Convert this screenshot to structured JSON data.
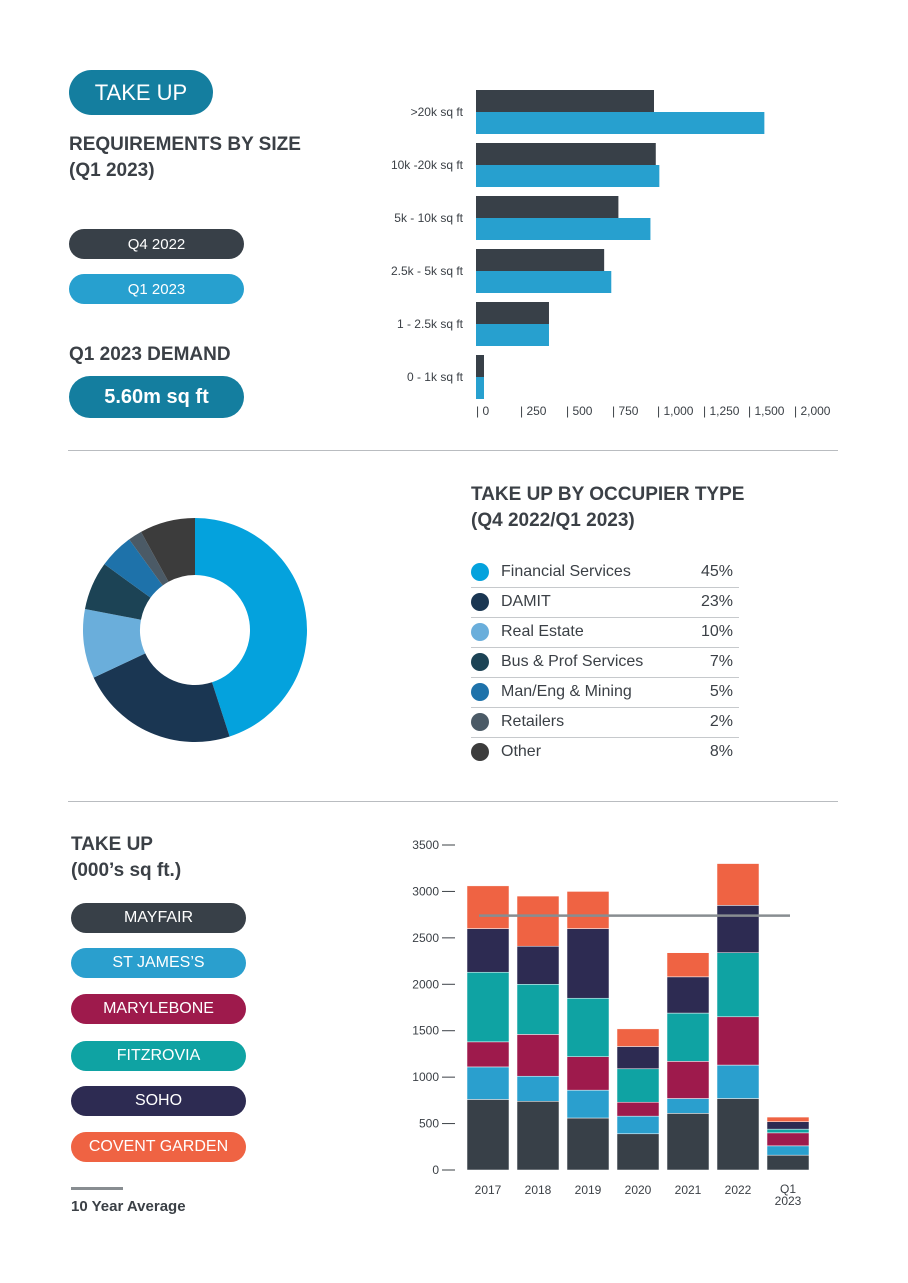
{
  "colors": {
    "dark": "#384048",
    "blue": "#27a0cf",
    "teal_pill": "#147e9f",
    "mayfair": "#384048",
    "st_james": "#2a9fce",
    "marylebone": "#9e1a4c",
    "fitzrovia": "#0fa3a3",
    "soho": "#2d2b52",
    "covent_garden": "#ef6343",
    "avg_line": "#888d91"
  },
  "section1": {
    "badge": "TAKE UP",
    "title_line1": "REQUIREMENTS BY SIZE",
    "title_line2": "(Q1 2023)",
    "legend": [
      "Q4 2022",
      "Q1 2023"
    ],
    "demand_title": "Q1 2023 DEMAND",
    "demand_value": "5.60m sq ft"
  },
  "section2": {
    "title_line1": "TAKE UP BY OCCUPIER TYPE",
    "title_line2": "(Q4 2022/Q1 2023)"
  },
  "section3": {
    "title_line1": "TAKE UP",
    "title_line2": "(000’s sq ft.)",
    "avg_label": "10 Year Average"
  },
  "chart_data": [
    {
      "type": "bar",
      "orientation": "horizontal",
      "categories": [
        ">20k sq ft",
        "10k -20k sq ft",
        "5k - 10k sq ft",
        "2.5k - 5k sq ft",
        "1 - 2.5k sq ft",
        "0 - 1k sq ft"
      ],
      "series": [
        {
          "name": "Q4 2022",
          "color": "#384048",
          "values": [
            1000,
            1010,
            800,
            720,
            410,
            40
          ]
        },
        {
          "name": "Q1 2023",
          "color": "#27a0cf",
          "values": [
            1620,
            1030,
            980,
            760,
            410,
            40
          ]
        }
      ],
      "xlim": [
        0,
        2000
      ],
      "xticks": [
        "| 0",
        "| 250",
        "| 500",
        "| 750",
        "| 1,000",
        "| 1,250",
        "| 1,500",
        "| 2,000"
      ]
    },
    {
      "type": "pie",
      "donut": true,
      "slices": [
        {
          "label": "Financial Services",
          "value": 45,
          "pct": "45%",
          "color": "#04a2dd"
        },
        {
          "label": "DAMIT",
          "value": 23,
          "pct": "23%",
          "color": "#1a3652"
        },
        {
          "label": "Real Estate",
          "value": 10,
          "pct": "10%",
          "color": "#6aaedb"
        },
        {
          "label": "Bus & Prof Services",
          "value": 7,
          "pct": "7%",
          "color": "#1c4355"
        },
        {
          "label": "Man/Eng & Mining",
          "value": 5,
          "pct": "5%",
          "color": "#1e72aa"
        },
        {
          "label": "Retailers",
          "value": 2,
          "pct": "2%",
          "color": "#4b5a66"
        },
        {
          "label": "Other",
          "value": 8,
          "pct": "8%",
          "color": "#3c3c3c"
        }
      ]
    },
    {
      "type": "bar",
      "stacked": true,
      "categories": [
        "2017",
        "2018",
        "2019",
        "2020",
        "2021",
        "2022",
        "Q1 2023"
      ],
      "series": [
        {
          "name": "MAYFAIR",
          "color": "#384048",
          "values": [
            760,
            740,
            560,
            390,
            610,
            770,
            160
          ]
        },
        {
          "name": "ST JAMES’S",
          "color": "#2a9fce",
          "values": [
            350,
            270,
            300,
            190,
            160,
            360,
            100
          ]
        },
        {
          "name": "MARYLEBONE",
          "color": "#9e1a4c",
          "values": [
            270,
            450,
            360,
            150,
            400,
            520,
            140
          ]
        },
        {
          "name": "FITZROVIA",
          "color": "#0fa3a3",
          "values": [
            750,
            540,
            630,
            360,
            520,
            690,
            40
          ]
        },
        {
          "name": "SOHO",
          "color": "#2d2b52",
          "values": [
            470,
            410,
            750,
            240,
            390,
            510,
            80
          ]
        },
        {
          "name": "COVENT GARDEN",
          "color": "#ef6343",
          "values": [
            460,
            540,
            400,
            190,
            260,
            450,
            50
          ]
        }
      ],
      "ylim": [
        0,
        3500
      ],
      "yticks": [
        0,
        500,
        1000,
        1500,
        2000,
        2500,
        3000,
        3500
      ],
      "average": {
        "name": "10 Year Average",
        "value": 2740
      }
    }
  ]
}
